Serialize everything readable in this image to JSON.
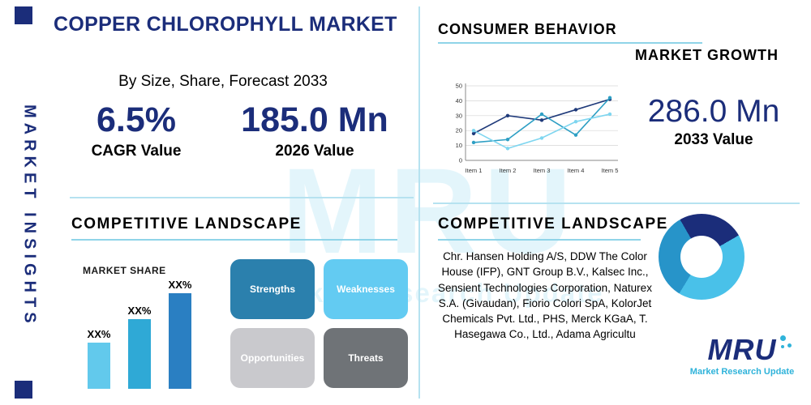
{
  "meta": {
    "brand": "MRU",
    "brand_sub": "Market Research Update"
  },
  "theme": {
    "navy": "#1b2d7a",
    "teal": "#2fb3da",
    "divider": "#b6e2f0",
    "underline": "#8fd4e8"
  },
  "sidebar": {
    "label": "MARKET INSIGHTS"
  },
  "top_left": {
    "title": "COPPER CHLOROPHYLL MARKET",
    "subtitle": "By Size, Share, Forecast 2033",
    "stats": [
      {
        "value": "6.5%",
        "label": "CAGR Value"
      },
      {
        "value": "185.0 Mn",
        "label": "2026 Value"
      }
    ]
  },
  "top_right": {
    "heading": "CONSUMER BEHAVIOR",
    "subheading": "MARKET GROWTH",
    "growth_value": "286.0 Mn",
    "growth_label": "2033 Value"
  },
  "bottom_left": {
    "heading": "COMPETITIVE LANDSCAPE",
    "swot": {
      "items": [
        {
          "label": "Strengths",
          "color": "#2b80ad",
          "text_color": "#ffffff"
        },
        {
          "label": "Weaknesses",
          "color": "#63cbf2",
          "text_color": "#ffffff"
        },
        {
          "label": "Opportunities",
          "color": "#c9c9cd",
          "text_color": "#ffffff"
        },
        {
          "label": "Threats",
          "color": "#6f7377",
          "text_color": "#ffffff"
        }
      ]
    }
  },
  "bottom_right": {
    "heading": "COMPETITIVE LANDSCAPE",
    "companies": "Chr. Hansen Holding A/S, DDW The Color House (IFP), GNT Group B.V., Kalsec Inc., Sensient Technologies Corporation, Naturex S.A. (Givaudan), Fiorio Colori SpA, KolorJet Chemicals Pvt. Ltd., PHS, Merck KGaA, T. Hasegawa Co., Ltd., Adama Agricultu"
  },
  "chart_data": [
    {
      "id": "consumer-behavior-line",
      "type": "line",
      "title": "CONSUMER BEHAVIOR",
      "categories": [
        "Item 1",
        "Item 2",
        "Item 3",
        "Item 4",
        "Item 5"
      ],
      "series": [
        {
          "name": "series-dark-blue",
          "color": "#1f3a7a",
          "values": [
            18,
            30,
            27,
            34,
            41
          ]
        },
        {
          "name": "series-teal",
          "color": "#2e9fc4",
          "values": [
            12,
            14,
            31,
            17,
            42
          ]
        },
        {
          "name": "series-light-blue",
          "color": "#7fd6f0",
          "values": [
            20,
            8,
            15,
            26,
            31
          ]
        }
      ],
      "ylim": [
        0,
        50
      ],
      "yticks": [
        0,
        10,
        20,
        30,
        40,
        50
      ],
      "grid": true,
      "legend": false
    },
    {
      "id": "market-share-bar",
      "type": "bar",
      "title": "MARKET SHARE",
      "categories": [
        "XX%",
        "XX%",
        "XX%"
      ],
      "values": [
        30,
        45,
        62
      ],
      "colors": [
        "#62c9ec",
        "#2fa9d6",
        "#2a7fc2"
      ],
      "ylim": [
        0,
        70
      ]
    },
    {
      "id": "company-share-donut",
      "type": "pie",
      "values": [
        25,
        42,
        33
      ],
      "colors": [
        "#1b2d7a",
        "#49c1e9",
        "#2794c9"
      ],
      "donut": true
    }
  ]
}
